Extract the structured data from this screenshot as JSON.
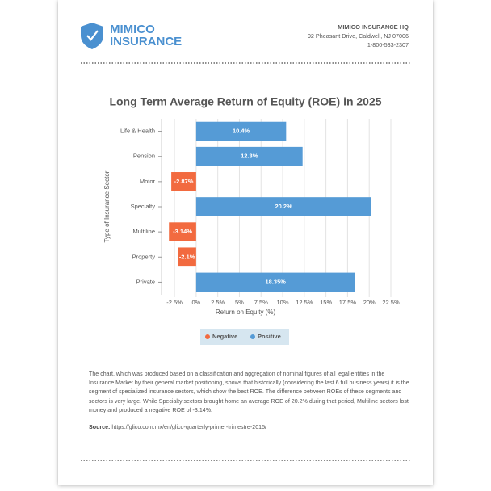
{
  "header": {
    "brand_line1": "MIMICO",
    "brand_line2": "INSURANCE",
    "office": "MIMICO INSURANCE HQ",
    "address": "92 Pheasant Drive, Caldwell, NJ 07006",
    "phone": "1-800-533-2307"
  },
  "chart_data": {
    "type": "bar",
    "orientation": "horizontal",
    "title": "Long Term Average Return of Equity (ROE) in 2025",
    "categories": [
      "Life & Health",
      "Pension",
      "Motor",
      "Specialty",
      "Multiline",
      "Property",
      "Private"
    ],
    "series": [
      {
        "name": "Negative",
        "color": "#f26a3f",
        "values": [
          null,
          null,
          -2.87,
          null,
          -3.14,
          -2.1,
          null
        ],
        "value_labels": [
          null,
          null,
          "-2.87%",
          null,
          "-3.14%",
          "-2.1%",
          null
        ]
      },
      {
        "name": "Positive",
        "color": "#559bd6",
        "values": [
          10.4,
          12.3,
          null,
          20.2,
          null,
          null,
          18.35
        ],
        "value_labels": [
          "10.4%",
          "12.3%",
          null,
          "20.2%",
          null,
          null,
          "18.35%"
        ]
      }
    ],
    "xlim": [
      -4,
      22.5
    ],
    "xticks": [
      {
        "value": -2.5,
        "label": "-2.5%"
      },
      {
        "value": 0,
        "label": "0%"
      },
      {
        "value": 2.5,
        "label": "2.5%"
      },
      {
        "value": 5,
        "label": "5%"
      },
      {
        "value": 7.5,
        "label": "7.5%"
      },
      {
        "value": 10,
        "label": "10%"
      },
      {
        "value": 12.5,
        "label": "12.5%"
      },
      {
        "value": 15,
        "label": "15%"
      },
      {
        "value": 17.5,
        "label": "17.5%"
      },
      {
        "value": 20,
        "label": "20%"
      },
      {
        "value": 22.5,
        "label": "22.5%"
      }
    ],
    "xlabel": "Return on Equity (%)",
    "ylabel": "Type of Insurance Sector",
    "grid": true
  },
  "description": "The chart, which was produced based on a classification and aggregation of nominal figures of all legal entities in the Insurance Market by their general market positioning, shows that historically (considering the last 6 full business years) it is the segment of specialized insurance sectors, which show the best ROE. The difference between ROEs of these segments and sectors is very large. While Specialty sectors brought home an average ROE of 20.2% during that period, Multiline sectors lost money and produced a negative ROE of -3.14%.",
  "source": {
    "label": "Source:",
    "url": "https://glico.com.mx/en/glico-quarterly-primer-trimestre-2015/"
  }
}
